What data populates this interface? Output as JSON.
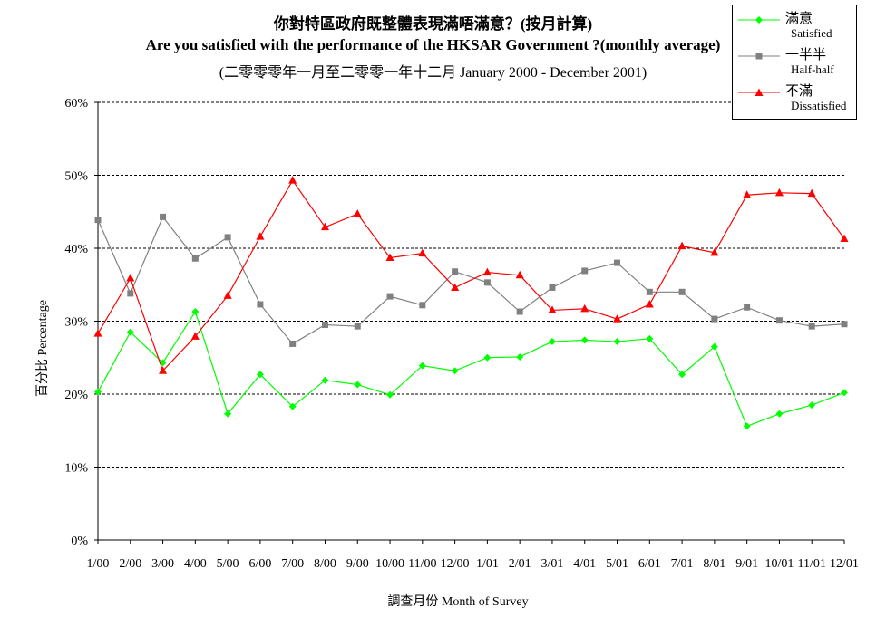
{
  "chart_data": {
    "type": "line",
    "title_zh": "你對特區政府既整體表現滿唔滿意？(按月計算)",
    "title_en": "Are you satisfied with the performance of the HKSAR Government ?(monthly average)",
    "subtitle": "(二零零零年一月至二零零一年十二月 January 2000 - December 2001)",
    "xlabel": "調查月份 Month of Survey",
    "ylabel": "百分比 Percentage",
    "ylim": [
      0,
      60
    ],
    "yticks": [
      "0%",
      "10%",
      "20%",
      "30%",
      "40%",
      "50%",
      "60%"
    ],
    "grid": "horizontal dashed",
    "legend_position": "top-right",
    "categories": [
      "1/00",
      "2/00",
      "3/00",
      "4/00",
      "5/00",
      "6/00",
      "7/00",
      "8/00",
      "9/00",
      "10/00",
      "11/00",
      "12/00",
      "1/01",
      "2/01",
      "3/01",
      "4/01",
      "5/01",
      "6/01",
      "7/01",
      "8/01",
      "9/01",
      "10/01",
      "11/01",
      "12/01"
    ],
    "series": [
      {
        "name_zh": "滿意",
        "name_en": "Satisfied",
        "color": "#00ff00",
        "marker": "diamond",
        "values": [
          20.3,
          28.5,
          24.3,
          31.3,
          17.3,
          22.7,
          18.3,
          21.9,
          21.3,
          19.9,
          23.9,
          23.2,
          25.0,
          25.1,
          27.2,
          27.4,
          27.2,
          27.6,
          22.7,
          26.5,
          15.6,
          17.3,
          18.5,
          20.2
        ]
      },
      {
        "name_zh": "一半半",
        "name_en": "Half-half",
        "color": "#808080",
        "marker": "square",
        "values": [
          43.9,
          33.8,
          44.3,
          38.6,
          41.5,
          32.3,
          26.9,
          29.5,
          29.3,
          33.4,
          32.2,
          36.8,
          35.3,
          31.3,
          34.6,
          36.9,
          38.0,
          34.0,
          34.0,
          30.3,
          31.9,
          30.1,
          29.3,
          29.6
        ]
      },
      {
        "name_zh": "不滿",
        "name_en": "Dissatisfied",
        "color": "#ff0000",
        "marker": "triangle",
        "values": [
          28.3,
          35.9,
          23.2,
          27.9,
          33.5,
          41.6,
          49.3,
          42.9,
          44.7,
          38.7,
          39.3,
          34.6,
          36.7,
          36.3,
          31.5,
          31.7,
          30.3,
          32.3,
          40.3,
          39.4,
          47.3,
          47.6,
          47.5,
          41.3
        ]
      }
    ]
  }
}
